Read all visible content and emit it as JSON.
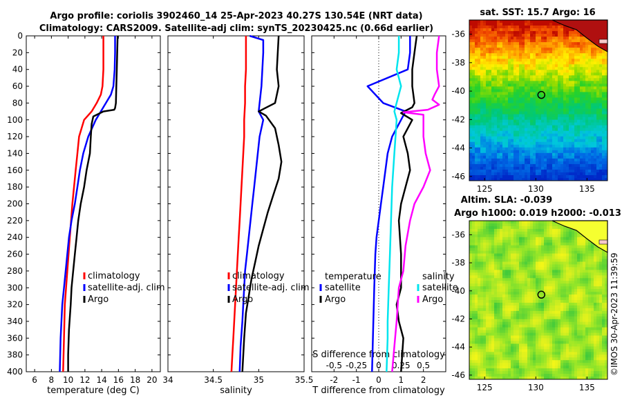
{
  "title_line1": "Argo profile: coriolis 3902460_14 25-Apr-2023 40.27S 130.54E (NRT data)",
  "title_line2": "Climatology: CARS2009. Satellite-adj clim: synTS_20230425.nc (0.66d earlier)",
  "sst_title": "sat. SST: 15.7 Argo: 16",
  "sla_title1": "Altim. SLA: -0.039",
  "sla_title2": "Argo h1000: 0.019 h2000: -0.013",
  "footer": "©IMOS 30-Apr-2023 11:39:59",
  "colors": {
    "climatology": "#ff0000",
    "satellite": "#0000ff",
    "argo": "#000000",
    "sat_salt": "#00e5ee",
    "argo_salt": "#ff00ff"
  },
  "chart_data": [
    {
      "type": "line",
      "name": "temperature",
      "xlabel": "temperature (deg C)",
      "ylabel": "depth",
      "xlim": [
        5,
        21
      ],
      "ylim": [
        0,
        400
      ],
      "xticks": [
        "6",
        "8",
        "10",
        "12",
        "14",
        "16",
        "18",
        "20"
      ],
      "yticks": [
        "0",
        "20",
        "40",
        "60",
        "80",
        "100",
        "120",
        "140",
        "160",
        "180",
        "200",
        "220",
        "240",
        "260",
        "280",
        "300",
        "320",
        "340",
        "360",
        "380",
        "400"
      ],
      "legend": [
        "climatology",
        "satellite-adj. clim",
        "Argo"
      ],
      "series": [
        {
          "name": "climatology",
          "color": "#ff0000",
          "x": [
            14.2,
            14.2,
            14.2,
            14.1,
            13.9,
            13.4,
            12.8,
            11.9,
            11.3,
            11.1,
            10.9,
            10.7,
            10.5,
            10.35,
            10.2,
            10.05,
            9.9,
            9.75,
            9.6,
            9.5,
            9.4
          ],
          "y": [
            0,
            20,
            40,
            60,
            70,
            80,
            90,
            100,
            120,
            140,
            160,
            180,
            200,
            220,
            240,
            260,
            280,
            300,
            320,
            360,
            400
          ]
        },
        {
          "name": "satellite-adj. clim",
          "color": "#0000ff",
          "x": [
            15.6,
            15.6,
            15.55,
            15.4,
            15.1,
            14.5,
            13.9,
            13.3,
            12.4,
            11.8,
            11.4,
            11.1,
            10.8,
            10.4,
            10.1,
            9.9,
            9.7,
            9.5,
            9.3,
            9.1,
            9.0
          ],
          "y": [
            0,
            20,
            40,
            60,
            70,
            80,
            90,
            100,
            120,
            140,
            160,
            180,
            200,
            220,
            240,
            260,
            280,
            300,
            320,
            360,
            400
          ]
        },
        {
          "name": "Argo",
          "color": "#000000",
          "x": [
            15.9,
            15.85,
            15.8,
            15.75,
            15.7,
            15.6,
            15.5,
            14.2,
            13.0,
            12.8,
            12.7,
            12.6,
            12.2,
            11.9,
            11.5,
            11.2,
            11.0,
            10.8,
            10.6,
            10.4,
            10.3,
            10.1,
            10.0,
            10.0
          ],
          "y": [
            0,
            20,
            40,
            60,
            80,
            86,
            88,
            90,
            96,
            105,
            120,
            140,
            160,
            180,
            200,
            220,
            240,
            260,
            280,
            300,
            320,
            350,
            380,
            400
          ]
        }
      ]
    },
    {
      "type": "line",
      "name": "salinity",
      "xlabel": "salinity",
      "ylabel": "depth",
      "xlim": [
        34,
        35.5
      ],
      "ylim": [
        0,
        400
      ],
      "xticks": [
        "34",
        "34.5",
        "35",
        "35.5"
      ],
      "legend": [
        "climatology",
        "satellite-adj. clim",
        "Argo"
      ],
      "series": [
        {
          "name": "climatology",
          "color": "#ff0000",
          "x": [
            34.86,
            34.86,
            34.86,
            34.85,
            34.85,
            34.84,
            34.84,
            34.83,
            34.82,
            34.81,
            34.8,
            34.79,
            34.78,
            34.77,
            34.76,
            34.75,
            34.74,
            34.73,
            34.72,
            34.71,
            34.7
          ],
          "y": [
            0,
            20,
            40,
            60,
            80,
            100,
            120,
            140,
            160,
            180,
            200,
            220,
            240,
            260,
            280,
            300,
            320,
            340,
            360,
            380,
            400
          ]
        },
        {
          "name": "satellite-adj. clim",
          "color": "#0000ff",
          "x": [
            34.9,
            35.05,
            35.05,
            35.04,
            35.03,
            35.0,
            35.05,
            35.01,
            34.99,
            34.97,
            34.95,
            34.93,
            34.91,
            34.89,
            34.87,
            34.85,
            34.84,
            34.83,
            34.82,
            34.8,
            34.79
          ],
          "y": [
            0,
            5,
            20,
            40,
            60,
            90,
            100,
            120,
            140,
            160,
            180,
            200,
            220,
            240,
            260,
            280,
            300,
            320,
            340,
            370,
            400
          ]
        },
        {
          "name": "Argo",
          "color": "#000000",
          "x": [
            35.22,
            35.21,
            35.2,
            35.22,
            35.18,
            35.0,
            35.08,
            35.18,
            35.22,
            35.25,
            35.22,
            35.16,
            35.1,
            35.05,
            35.0,
            34.96,
            34.92,
            34.89,
            34.86,
            34.84,
            34.82
          ],
          "y": [
            0,
            20,
            40,
            60,
            80,
            90,
            95,
            110,
            130,
            150,
            170,
            190,
            210,
            230,
            250,
            270,
            290,
            310,
            330,
            360,
            400
          ]
        }
      ]
    },
    {
      "type": "line",
      "name": "difference from climatology",
      "xlabel": "T difference from climatology",
      "xlabel_top": "S difference from climatology",
      "xlim": [
        -3,
        3
      ],
      "ylim": [
        0,
        400
      ],
      "xticks": [
        "-2",
        "-1",
        "0",
        "1",
        "2"
      ],
      "xticks_top": [
        "-0.5",
        "-0.25",
        "0",
        "0.25",
        "0.5"
      ],
      "legend_left_title": "temperature",
      "legend_right_title": "salinity",
      "legend_left": [
        "satellite",
        "Argo"
      ],
      "legend_right": [
        "satellite",
        "Argo"
      ],
      "series": [
        {
          "name": "satellite",
          "group": "temperature",
          "color": "#0000ff",
          "x": [
            1.4,
            1.4,
            1.3,
            -0.5,
            0.2,
            1.2,
            1.0,
            0.6,
            0.4,
            0.3,
            0.2,
            0.1,
            0.0,
            -0.1,
            -0.15,
            -0.2,
            -0.25,
            -0.3
          ],
          "y": [
            0,
            20,
            40,
            60,
            80,
            90,
            100,
            120,
            140,
            160,
            180,
            200,
            220,
            240,
            260,
            300,
            350,
            400
          ]
        },
        {
          "name": "Argo",
          "group": "temperature",
          "color": "#000000",
          "x": [
            1.7,
            1.6,
            1.5,
            1.5,
            1.6,
            1.5,
            1.0,
            1.5,
            1.1,
            1.3,
            1.4,
            1.2,
            1.0,
            0.9,
            1.0,
            1.0,
            0.8,
            0.9,
            1.1,
            1.0
          ],
          "y": [
            0,
            20,
            40,
            60,
            80,
            85,
            92,
            100,
            120,
            140,
            160,
            180,
            200,
            220,
            260,
            300,
            320,
            340,
            360,
            400
          ]
        },
        {
          "name": "satellite",
          "group": "salinity",
          "color": "#00e5ee",
          "x": [
            0.9,
            0.9,
            0.8,
            1.0,
            0.7,
            0.8,
            0.75,
            0.7,
            0.6,
            0.55,
            0.5,
            0.45,
            0.4,
            0.4,
            0.35
          ],
          "y": [
            0,
            20,
            40,
            60,
            90,
            100,
            120,
            140,
            180,
            220,
            260,
            300,
            340,
            360,
            400
          ]
        },
        {
          "name": "Argo",
          "group": "salinity",
          "color": "#ff00ff",
          "x": [
            2.7,
            2.6,
            2.6,
            2.7,
            2.5,
            2.4,
            2.7,
            2.2,
            1.1,
            2.0,
            2.0,
            2.1,
            2.3,
            2.0,
            1.6,
            1.4,
            1.2,
            1.1,
            0.9,
            0.8,
            0.7,
            0.6
          ],
          "y": [
            0,
            20,
            40,
            60,
            70,
            76,
            82,
            88,
            91,
            94,
            120,
            140,
            160,
            180,
            200,
            220,
            250,
            280,
            300,
            340,
            370,
            400
          ]
        }
      ]
    },
    {
      "type": "heatmap",
      "name": "sea surface temperature map",
      "title": "sat. SST: 15.7 Argo: 16",
      "xlim": [
        123.5,
        137
      ],
      "ylim": [
        -46.3,
        -35
      ],
      "xticks": [
        "125",
        "130",
        "135"
      ],
      "yticks": [
        "-36",
        "-38",
        "-40",
        "-42",
        "-44",
        "-46"
      ],
      "marker": {
        "lon": 130.54,
        "lat": -40.27
      }
    },
    {
      "type": "heatmap",
      "name": "sea level anomaly map",
      "title": "Altim. SLA: -0.039",
      "xlim": [
        123.5,
        137
      ],
      "ylim": [
        -46.3,
        -35
      ],
      "xticks": [
        "125",
        "130",
        "135"
      ],
      "yticks": [
        "-36",
        "-38",
        "-40",
        "-42",
        "-44",
        "-46"
      ],
      "marker": {
        "lon": 130.54,
        "lat": -40.27
      }
    }
  ]
}
